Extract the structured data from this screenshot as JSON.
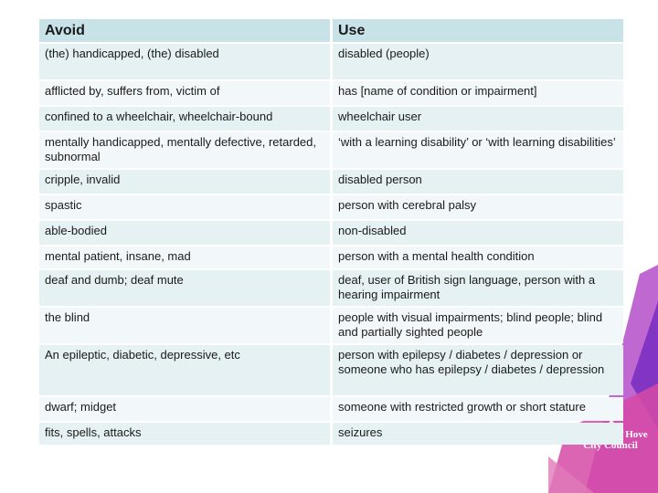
{
  "table": {
    "headers": {
      "avoid": "Avoid",
      "use": "Use"
    },
    "rows": [
      {
        "avoid": "(the) handicapped, (the) disabled",
        "use": "disabled (people)"
      },
      {
        "avoid": "afflicted by, suffers from, victim of",
        "use": "has [name of condition or impairment]"
      },
      {
        "avoid": "confined to a wheelchair, wheelchair-bound",
        "use": "wheelchair user"
      },
      {
        "avoid": "mentally handicapped, mentally defective, retarded, subnormal",
        "use": "‘with a learning disability’ or ‘with learning disabilities’"
      },
      {
        "avoid": "cripple, invalid",
        "use": "disabled person"
      },
      {
        "avoid": "spastic",
        "use": "person with cerebral palsy"
      },
      {
        "avoid": "able-bodied",
        "use": "non-disabled"
      },
      {
        "avoid": "mental patient, insane, mad",
        "use": "person with a mental health condition"
      },
      {
        "avoid": "deaf and dumb; deaf mute",
        "use": "deaf, user of British sign language, person with a hearing impairment"
      },
      {
        "avoid": "the blind",
        "use": "people with visual impairments; blind people; blind and partially sighted people"
      },
      {
        "avoid": "An epileptic, diabetic, depressive, etc",
        "use": "person with epilepsy / diabetes / depression  or someone who has epilepsy / diabetes / depression"
      },
      {
        "avoid": "dwarf; midget",
        "use": "someone with restricted growth or short stature"
      },
      {
        "avoid": "fits, spells, attacks",
        "use": "seizures"
      }
    ]
  },
  "logo": {
    "line1": "Brighton & Hove",
    "line2": "City Council"
  },
  "colors": {
    "header": "#c7e3e8",
    "row_odd": "#e5f1f3",
    "row_even": "#f2f8f9",
    "accent_purple": "#8a2fb8",
    "accent_magenta": "#d0369a"
  }
}
